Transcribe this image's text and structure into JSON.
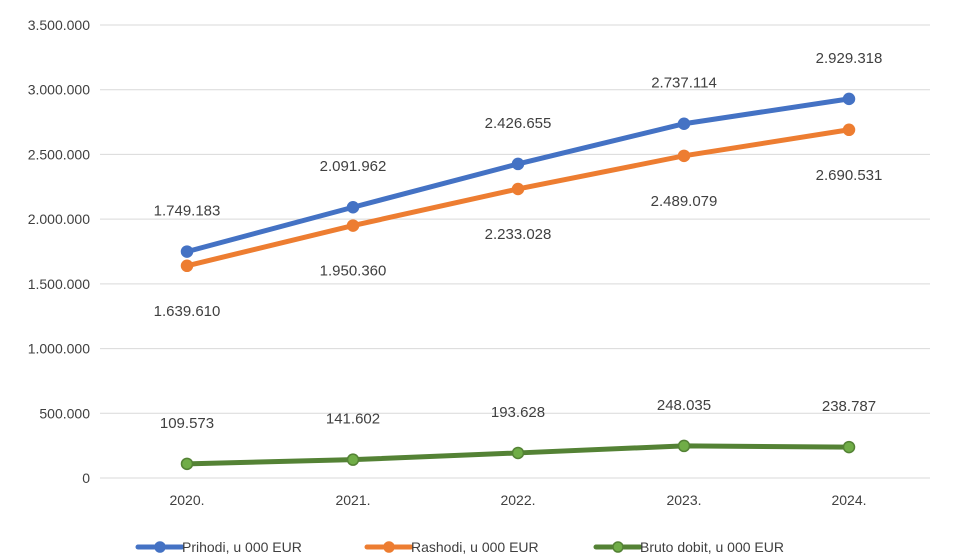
{
  "chart_data": {
    "type": "line",
    "title": "",
    "xlabel": "",
    "ylabel": "",
    "categories": [
      "2020.",
      "2021.",
      "2022.",
      "2023.",
      "2024."
    ],
    "ylim": [
      0,
      3500000
    ],
    "y_ticks": [
      0,
      500000,
      1000000,
      1500000,
      2000000,
      2500000,
      3000000,
      3500000
    ],
    "y_tick_labels": [
      "0",
      "500.000",
      "1.000.000",
      "1.500.000",
      "2.000.000",
      "2.500.000",
      "3.000.000",
      "3.500.000"
    ],
    "grid": true,
    "legend_position": "bottom",
    "series": [
      {
        "name": "Prihodi, u 000 EUR",
        "color": "#4472c4",
        "values": [
          1749183,
          2091962,
          2426655,
          2737114,
          2929318
        ],
        "labels": [
          "1.749.183",
          "2.091.962",
          "2.426.655",
          "2.737.114",
          "2.929.318"
        ],
        "label_position": "above"
      },
      {
        "name": "Rashodi, u 000 EUR",
        "color": "#ed7d31",
        "values": [
          1639610,
          1950360,
          2233028,
          2489079,
          2690531
        ],
        "labels": [
          "1.639.610",
          "1.950.360",
          "2.233.028",
          "2.489.079",
          "2.690.531"
        ],
        "label_position": "below"
      },
      {
        "name": "Bruto dobit, u 000 EUR",
        "color": "#548235",
        "marker_color": "#70ad47",
        "values": [
          109573,
          141602,
          193628,
          248035,
          238787
        ],
        "labels": [
          "109.573",
          "141.602",
          "193.628",
          "248.035",
          "238.787"
        ],
        "label_position": "above"
      }
    ]
  }
}
